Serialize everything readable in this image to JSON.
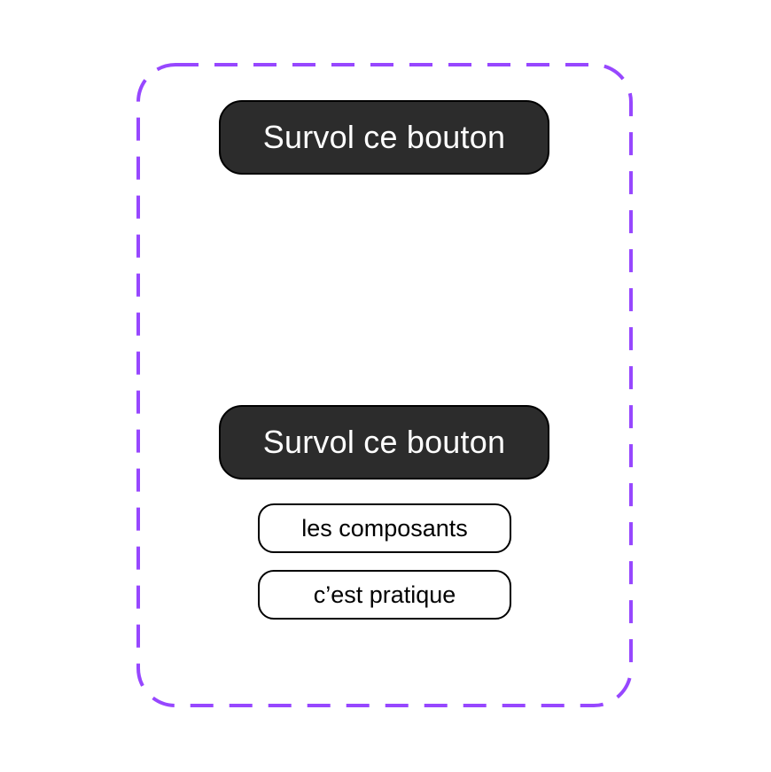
{
  "colors": {
    "frame_border": "#9747ff",
    "button_bg": "#2c2c2c",
    "button_text": "#ffffff",
    "menu_bg": "#ffffff",
    "menu_text": "#000000"
  },
  "buttons": {
    "top_label": "Survol ce bouton",
    "hover_label": "Survol ce bouton"
  },
  "dropdown": {
    "items": [
      {
        "label": "les composants"
      },
      {
        "label": "c’est pratique"
      }
    ]
  }
}
